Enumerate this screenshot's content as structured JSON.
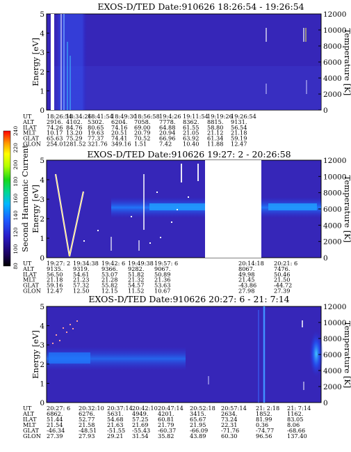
{
  "chart_data": [
    {
      "type": "heatmap",
      "title": "EXOS-D/TED   Date:910626  18:26:54 - 19:26:54",
      "ylabel": "Energy [eV]",
      "y2label": "Temperature [K]",
      "ylim": [
        0,
        5
      ],
      "y_ticks": [
        "0",
        "1",
        "2",
        "3",
        "4",
        "5"
      ],
      "y2lim": [
        0,
        12000
      ],
      "y2_ticks": [
        "0",
        "2000",
        "4000",
        "6000",
        "8000",
        "10000",
        "12000"
      ],
      "table": {
        "row_labels": [
          "UT",
          "ALT",
          "ILAT",
          "MLT",
          "GLAT",
          "GLON"
        ],
        "columns": [
          [
            "18:26:54",
            "2916.",
            "74.26",
            "10.17",
            "65.63",
            "254.01"
          ],
          [
            "18:34:26",
            "4102.",
            "84.76",
            "13.20",
            "75.29",
            "281.52"
          ],
          [
            "18:41:54",
            "5302.",
            "80.65",
            "19.63",
            "77.37",
            "321.76"
          ],
          [
            "18:49:30",
            "6204.",
            "74.16",
            "20.51",
            "74.41",
            "349.16"
          ],
          [
            "18:56:58",
            "7058.",
            "69.00",
            "20.79",
            "70.52",
            "1.51"
          ],
          [
            "19:4:26",
            "7778.",
            "64.88",
            "20.94",
            "66.96",
            "7.42"
          ],
          [
            "19:11:54",
            "8362.",
            "61.55",
            "21.05",
            "63.92",
            "10.40"
          ],
          [
            "19:19:26",
            "8815.",
            "58.80",
            "21.12",
            "61.34",
            "11.88"
          ],
          [
            "19:26:54",
            "9131.",
            "56.54",
            "21.18",
            "59.19",
            "12.47"
          ]
        ]
      }
    },
    {
      "type": "heatmap",
      "title": "EXOS-D/TED   Date:910626  19:27: 2 - 20:26:58",
      "ylabel": "Energy [eV]",
      "y2label": "Temperature [K]",
      "ylim": [
        0,
        5
      ],
      "y_ticks": [
        "0",
        "1",
        "2",
        "3",
        "4",
        "5"
      ],
      "y2lim": [
        0,
        12000
      ],
      "y2_ticks": [
        "0",
        "2000",
        "4000",
        "6000",
        "8000",
        "10000",
        "12000"
      ],
      "colorbar": {
        "label": "Second Harmonic Current",
        "ticks": [
          "80",
          "100",
          "120",
          "140",
          "160",
          "180",
          "200",
          "220",
          "240"
        ]
      },
      "table": {
        "row_labels": [
          "UT",
          "ALT",
          "ILAT",
          "MLT",
          "GLAT",
          "GLON"
        ],
        "columns": [
          [
            "19:27: 2",
            "9135.",
            "56.50",
            "21.18",
            "59.16",
            "12.47"
          ],
          [
            "19:34:38",
            "9319.",
            "54.61",
            "21.23",
            "57.32",
            "12.50"
          ],
          [
            "19:42: 6",
            "9366.",
            "53.07",
            "21.28",
            "55.82",
            "12.15"
          ],
          [
            "19:49:38",
            "9282.",
            "51.82",
            "21.32",
            "54.57",
            "11.52"
          ],
          [
            "19:57: 6",
            "9067.",
            "50.89",
            "21.36",
            "53.63",
            "10.67"
          ],
          [
            "20:14:18",
            "8067.",
            "49.98",
            "21.45",
            "-43.86",
            "27.98"
          ],
          [
            "20:21: 6",
            "7476.",
            "50.46",
            "21.50",
            "-44.72",
            "27.39"
          ]
        ]
      }
    },
    {
      "type": "heatmap",
      "title": "EXOS-D/TED   Date:910626  20:27: 6 - 21: 7:14",
      "ylabel": "Energy [eV]",
      "y2label": "Temperature [K]",
      "ylim": [
        0,
        5
      ],
      "y_ticks": [
        "0",
        "1",
        "2",
        "3",
        "4",
        "5"
      ],
      "y2lim": [
        0,
        12000
      ],
      "y2_ticks": [
        "0",
        "2000",
        "4000",
        "6000",
        "8000",
        "10000",
        "12000"
      ],
      "table": {
        "row_labels": [
          "UT",
          "ALT",
          "ILAT",
          "MLT",
          "GLAT",
          "GLON"
        ],
        "columns": [
          [
            "20:27: 6",
            "6862.",
            "51.44",
            "21.54",
            "-46.34",
            "27.39"
          ],
          [
            "20:32:10",
            "6276.",
            "52.77",
            "21.58",
            "-48.51",
            "27.93"
          ],
          [
            "20:37:14",
            "5631.",
            "54.68",
            "21.63",
            "-51.55",
            "29.21"
          ],
          [
            "20:42:10",
            "4949.",
            "57.25",
            "21.69",
            "-55.43",
            "31.54"
          ],
          [
            "20:47:14",
            "4201.",
            "60.81",
            "21.79",
            "-60.37",
            "35.82"
          ],
          [
            "20:52:18",
            "3415.",
            "65.67",
            "21.95",
            "-66.09",
            "43.89"
          ],
          [
            "20:57:14",
            "2634.",
            "73.24",
            "22.31",
            "-71.76",
            "60.30"
          ],
          [
            "21: 2:18",
            "1852.",
            "81.99",
            "0.36",
            "-74.77",
            "96.56"
          ],
          [
            "21: 7:14",
            "1162.",
            "83.05",
            "8.06",
            "-68.66",
            "137.40"
          ]
        ]
      }
    }
  ]
}
